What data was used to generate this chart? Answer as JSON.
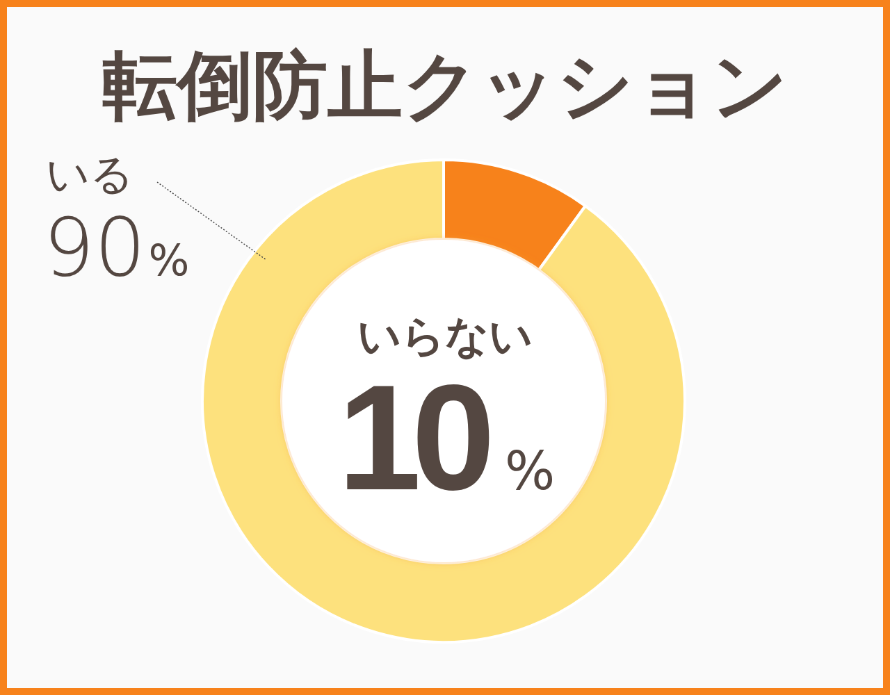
{
  "chart_data": {
    "type": "donut",
    "title": "転倒防止クッション",
    "categories": [
      "いらない",
      "いる"
    ],
    "values": [
      10,
      90
    ],
    "colors": [
      "#f7821b",
      "#fde17d"
    ],
    "value_labels": [
      "10%",
      "90%"
    ]
  }
}
